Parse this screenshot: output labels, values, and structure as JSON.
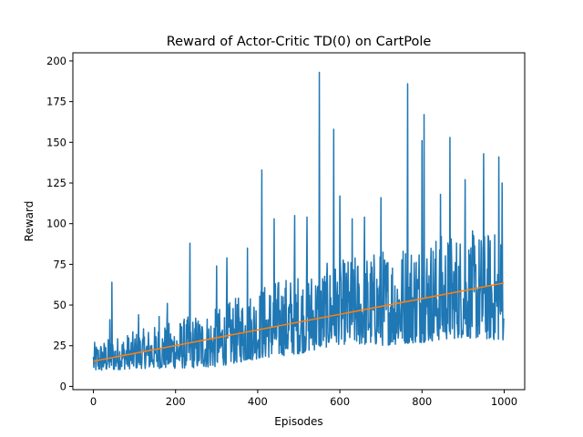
{
  "chart_data": {
    "type": "line",
    "title": "Reward of Actor-Critic TD(0) on CartPole",
    "xlabel": "Episodes",
    "ylabel": "Reward",
    "xlim": [
      -50,
      1050
    ],
    "ylim": [
      -2,
      205
    ],
    "xticks": [
      0,
      200,
      400,
      600,
      800,
      1000
    ],
    "yticks": [
      0,
      25,
      50,
      75,
      100,
      125,
      150,
      175,
      200
    ],
    "grid": false,
    "legend": "none",
    "series": [
      {
        "kind": "noisy_line",
        "color": "#1f77b4",
        "x_start": 0,
        "x_end": 999,
        "band_low": [
          [
            0,
            9
          ],
          [
            100,
            11
          ],
          [
            200,
            11
          ],
          [
            300,
            12
          ],
          [
            400,
            17
          ],
          [
            500,
            20
          ],
          [
            600,
            26
          ],
          [
            700,
            25
          ],
          [
            800,
            27
          ],
          [
            900,
            30
          ],
          [
            999,
            28
          ]
        ],
        "band_high": [
          [
            0,
            27
          ],
          [
            100,
            34
          ],
          [
            200,
            41
          ],
          [
            300,
            48
          ],
          [
            400,
            62
          ],
          [
            500,
            71
          ],
          [
            600,
            78
          ],
          [
            700,
            85
          ],
          [
            800,
            93
          ],
          [
            900,
            96
          ],
          [
            999,
            96
          ]
        ],
        "spikes": [
          {
            "x": 40,
            "y": 41
          },
          {
            "x": 45,
            "y": 64
          },
          {
            "x": 110,
            "y": 44
          },
          {
            "x": 160,
            "y": 43
          },
          {
            "x": 180,
            "y": 51
          },
          {
            "x": 235,
            "y": 88
          },
          {
            "x": 300,
            "y": 74
          },
          {
            "x": 325,
            "y": 79
          },
          {
            "x": 375,
            "y": 85
          },
          {
            "x": 410,
            "y": 133
          },
          {
            "x": 440,
            "y": 103
          },
          {
            "x": 490,
            "y": 105
          },
          {
            "x": 520,
            "y": 104
          },
          {
            "x": 550,
            "y": 193
          },
          {
            "x": 585,
            "y": 158
          },
          {
            "x": 600,
            "y": 117
          },
          {
            "x": 630,
            "y": 103
          },
          {
            "x": 660,
            "y": 104
          },
          {
            "x": 700,
            "y": 116
          },
          {
            "x": 765,
            "y": 186
          },
          {
            "x": 800,
            "y": 151
          },
          {
            "x": 805,
            "y": 167
          },
          {
            "x": 845,
            "y": 118
          },
          {
            "x": 868,
            "y": 153
          },
          {
            "x": 905,
            "y": 127
          },
          {
            "x": 950,
            "y": 143
          },
          {
            "x": 987,
            "y": 141
          },
          {
            "x": 995,
            "y": 125
          }
        ]
      },
      {
        "kind": "trend",
        "color": "#ff7f0e",
        "x": [
          0,
          999
        ],
        "y": [
          15.5,
          63.5
        ]
      }
    ]
  }
}
